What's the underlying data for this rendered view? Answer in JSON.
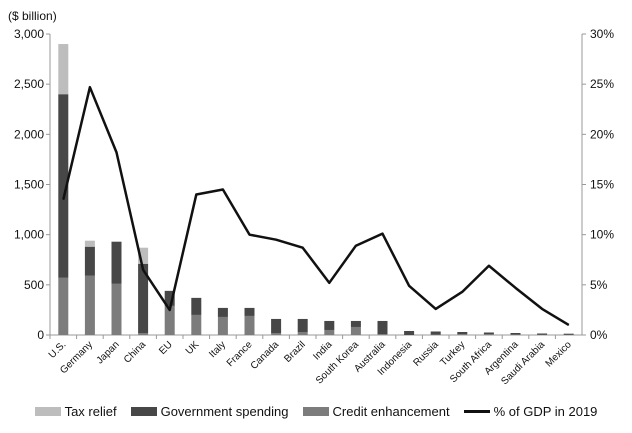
{
  "chart_data": {
    "type": "bar",
    "title": "",
    "ylabel": "($ billion)",
    "ylim": [
      0,
      3000
    ],
    "y2lim": [
      0,
      30
    ],
    "yticks": [
      "0",
      "500",
      "1,000",
      "1,500",
      "2,000",
      "2,500",
      "3,000"
    ],
    "y2ticks": [
      "0%",
      "5%",
      "10%",
      "15%",
      "20%",
      "25%",
      "30%"
    ],
    "categories": [
      "U.S.",
      "Germany",
      "Japan",
      "China",
      "EU",
      "UK",
      "Italy",
      "France",
      "Canada",
      "Brazil",
      "India",
      "South Korea",
      "Australia",
      "Indonesia",
      "Russia",
      "Turkey",
      "South Africa",
      "Argentina",
      "Saudi Arabia",
      "Mexico"
    ],
    "series": [
      {
        "name": "Credit enhancement",
        "type": "bar",
        "color": "#7c7c7c",
        "values": [
          570,
          590,
          510,
          20,
          290,
          200,
          180,
          190,
          20,
          30,
          50,
          80,
          10,
          0,
          5,
          10,
          10,
          5,
          3,
          3
        ]
      },
      {
        "name": "Government spending",
        "type": "bar",
        "color": "#474747",
        "values": [
          1830,
          290,
          420,
          690,
          150,
          170,
          90,
          80,
          140,
          130,
          90,
          60,
          130,
          40,
          30,
          20,
          15,
          15,
          12,
          10
        ]
      },
      {
        "name": "Tax relief",
        "type": "bar",
        "color": "#bdbdbd",
        "values": [
          500,
          60,
          0,
          160,
          0,
          0,
          0,
          0,
          0,
          0,
          0,
          0,
          0,
          0,
          0,
          0,
          0,
          0,
          0,
          0
        ]
      },
      {
        "name": "% of GDP in 2019",
        "type": "line",
        "axis": "right",
        "color": "#111111",
        "values": [
          13.5,
          24.7,
          18.2,
          6.5,
          2.5,
          14,
          14.5,
          10,
          9.5,
          8.7,
          5.2,
          8.9,
          10.1,
          4.9,
          2.6,
          4.3,
          6.9,
          4.7,
          2.6,
          1.0
        ]
      }
    ],
    "legend": [
      "Tax relief",
      "Government spending",
      "Credit enhancement",
      "% of GDP in 2019"
    ],
    "legend_position": "bottom"
  }
}
